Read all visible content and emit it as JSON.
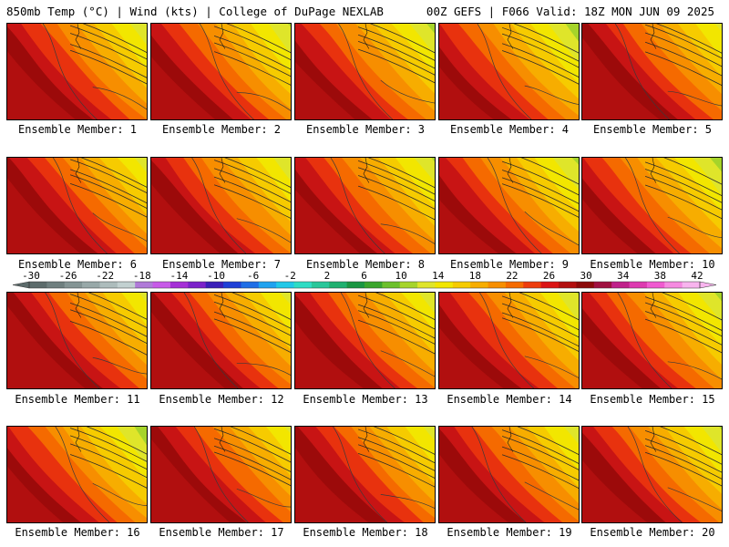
{
  "header": {
    "left": "850mb Temp (°C) | Wind (kts) | College of DuPage NEXLAB",
    "right": "00Z GEFS | F066 Valid: 18Z MON JUN 09 2025"
  },
  "members": [
    {
      "label": "Ensemble Member: 1"
    },
    {
      "label": "Ensemble Member: 2"
    },
    {
      "label": "Ensemble Member: 3"
    },
    {
      "label": "Ensemble Member: 4"
    },
    {
      "label": "Ensemble Member: 5"
    },
    {
      "label": "Ensemble Member: 6"
    },
    {
      "label": "Ensemble Member: 7"
    },
    {
      "label": "Ensemble Member: 8"
    },
    {
      "label": "Ensemble Member: 9"
    },
    {
      "label": "Ensemble Member: 10"
    },
    {
      "label": "Ensemble Member: 11"
    },
    {
      "label": "Ensemble Member: 12"
    },
    {
      "label": "Ensemble Member: 13"
    },
    {
      "label": "Ensemble Member: 14"
    },
    {
      "label": "Ensemble Member: 15"
    },
    {
      "label": "Ensemble Member: 16"
    },
    {
      "label": "Ensemble Member: 17"
    },
    {
      "label": "Ensemble Member: 18"
    },
    {
      "label": "Ensemble Member: 19"
    },
    {
      "label": "Ensemble Member: 20"
    }
  ],
  "colorbar": {
    "labels": [
      "-30",
      "-26",
      "-22",
      "-18",
      "-14",
      "-10",
      "-6",
      "-2",
      "2",
      "6",
      "10",
      "14",
      "18",
      "22",
      "26",
      "30",
      "34",
      "38",
      "42"
    ],
    "colors": [
      "#5c6b6b",
      "#6f7f7f",
      "#849494",
      "#98a8a8",
      "#adbcbc",
      "#c2d0d0",
      "#b07ad8",
      "#c75ae8",
      "#a52fd6",
      "#7b22c9",
      "#3a1fb8",
      "#1e3fd6",
      "#1f6ee6",
      "#1fa2f0",
      "#21c8e8",
      "#2fdcc4",
      "#28c79a",
      "#1fb06f",
      "#1a9642",
      "#3aa52c",
      "#6cc02b",
      "#a6d42a",
      "#dfe52a",
      "#f2e600",
      "#f6cb00",
      "#f7ad00",
      "#f78e00",
      "#f56a00",
      "#ee3c0c",
      "#db1414",
      "#b30f0f",
      "#8c0a0a",
      "#a01040",
      "#c0208a",
      "#dd3ab0",
      "#f05ad0",
      "#f58ae0",
      "#f8b4ee"
    ]
  }
}
